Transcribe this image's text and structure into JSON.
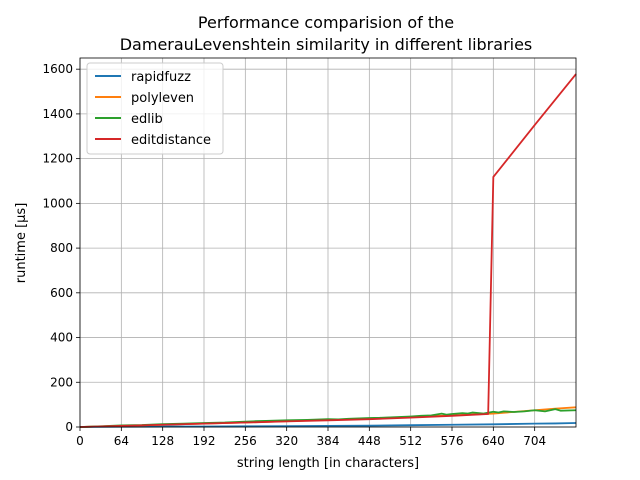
{
  "chart_data": {
    "type": "line",
    "title": [
      "Performance comparision of the",
      "DamerauLevenshtein similarity in different libraries"
    ],
    "xlabel": "string length [in characters]",
    "ylabel": "runtime [µs]",
    "xlim": [
      0,
      768
    ],
    "ylim": [
      0,
      1650
    ],
    "xticks": [
      0,
      64,
      128,
      192,
      256,
      320,
      384,
      448,
      512,
      576,
      640,
      704
    ],
    "yticks": [
      0,
      200,
      400,
      600,
      800,
      1000,
      1200,
      1400,
      1600
    ],
    "grid": true,
    "legend_position": "top-left",
    "series": [
      {
        "name": "rapidfuzz",
        "color": "#1f77b4",
        "points": [
          [
            0,
            0
          ],
          [
            64,
            1
          ],
          [
            128,
            2
          ],
          [
            192,
            2
          ],
          [
            256,
            3
          ],
          [
            320,
            4
          ],
          [
            384,
            5
          ],
          [
            448,
            6
          ],
          [
            512,
            8
          ],
          [
            576,
            10
          ],
          [
            640,
            12
          ],
          [
            704,
            15
          ],
          [
            736,
            16
          ],
          [
            768,
            18
          ]
        ]
      },
      {
        "name": "polyleven",
        "color": "#ff7f0e",
        "points": [
          [
            0,
            0
          ],
          [
            64,
            5
          ],
          [
            128,
            10
          ],
          [
            192,
            15
          ],
          [
            256,
            20
          ],
          [
            320,
            26
          ],
          [
            384,
            32
          ],
          [
            448,
            38
          ],
          [
            512,
            45
          ],
          [
            576,
            52
          ],
          [
            640,
            60
          ],
          [
            704,
            75
          ],
          [
            736,
            82
          ],
          [
            768,
            88
          ]
        ]
      },
      {
        "name": "edlib",
        "color": "#2ca02c",
        "points": [
          [
            0,
            0
          ],
          [
            32,
            3
          ],
          [
            64,
            7
          ],
          [
            96,
            9
          ],
          [
            128,
            13
          ],
          [
            160,
            15
          ],
          [
            192,
            18
          ],
          [
            224,
            20
          ],
          [
            256,
            24
          ],
          [
            272,
            26
          ],
          [
            288,
            27
          ],
          [
            320,
            30
          ],
          [
            352,
            32
          ],
          [
            384,
            35
          ],
          [
            400,
            34
          ],
          [
            416,
            37
          ],
          [
            448,
            40
          ],
          [
            464,
            41
          ],
          [
            480,
            43
          ],
          [
            512,
            47
          ],
          [
            528,
            50
          ],
          [
            544,
            52
          ],
          [
            560,
            60
          ],
          [
            568,
            55
          ],
          [
            576,
            58
          ],
          [
            592,
            62
          ],
          [
            600,
            60
          ],
          [
            608,
            65
          ],
          [
            624,
            60
          ],
          [
            640,
            68
          ],
          [
            648,
            65
          ],
          [
            656,
            70
          ],
          [
            672,
            67
          ],
          [
            688,
            70
          ],
          [
            704,
            75
          ],
          [
            720,
            70
          ],
          [
            736,
            80
          ],
          [
            744,
            73
          ],
          [
            768,
            75
          ]
        ]
      },
      {
        "name": "editdistance",
        "color": "#d62728",
        "points": [
          [
            0,
            0
          ],
          [
            64,
            5
          ],
          [
            128,
            10
          ],
          [
            192,
            15
          ],
          [
            256,
            20
          ],
          [
            320,
            25
          ],
          [
            384,
            30
          ],
          [
            448,
            35
          ],
          [
            512,
            42
          ],
          [
            576,
            50
          ],
          [
            632,
            58
          ],
          [
            640,
            1118
          ],
          [
            704,
            1350
          ],
          [
            768,
            1578
          ]
        ]
      }
    ]
  }
}
